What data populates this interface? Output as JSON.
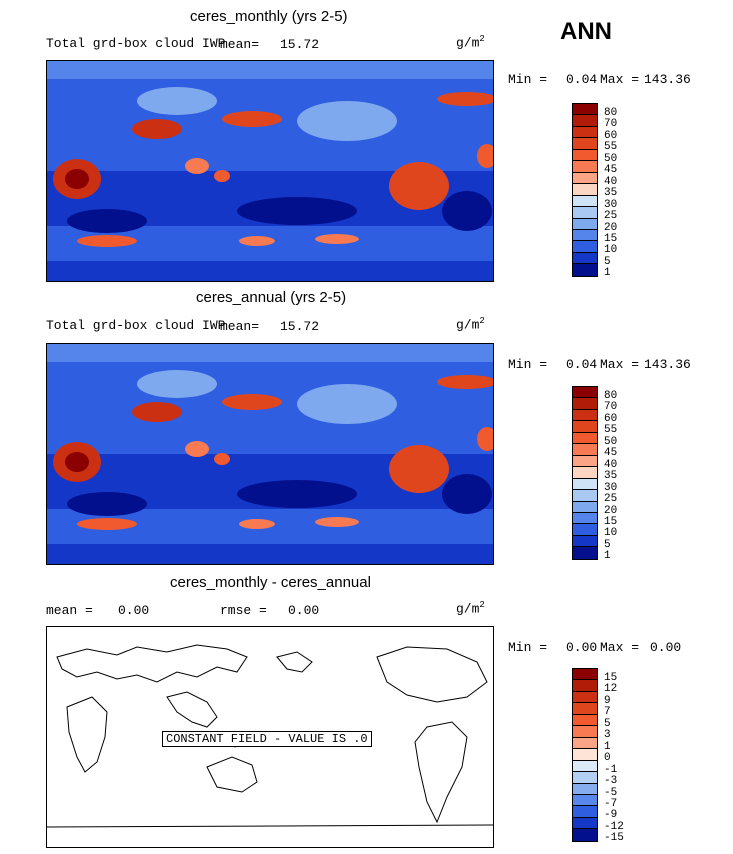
{
  "season": "ANN",
  "panels": [
    {
      "title": "ceres_monthly (yrs 2-5)",
      "variable": "Total grd-box cloud IWP",
      "mean_label": "mean=",
      "mean_value": "15.72",
      "units_base": "g/m",
      "units_exp": "2",
      "min_label": "Min =",
      "min_value": "0.04",
      "max_label": "Max =",
      "max_value": "143.36",
      "levels": [
        "80",
        "70",
        "60",
        "55",
        "50",
        "45",
        "40",
        "35",
        "30",
        "25",
        "20",
        "15",
        "10",
        "5",
        "1"
      ]
    },
    {
      "title": "ceres_annual (yrs 2-5)",
      "variable": "Total grd-box cloud IWP",
      "mean_label": "mean=",
      "mean_value": "15.72",
      "units_base": "g/m",
      "units_exp": "2",
      "min_label": "Min =",
      "min_value": "0.04",
      "max_label": "Max =",
      "max_value": "143.36",
      "levels": [
        "80",
        "70",
        "60",
        "55",
        "50",
        "45",
        "40",
        "35",
        "30",
        "25",
        "20",
        "15",
        "10",
        "5",
        "1"
      ]
    },
    {
      "title": "ceres_monthly - ceres_annual",
      "mean_label": "mean =",
      "mean_value": "0.00",
      "rmse_label": "rmse =",
      "rmse_value": "0.00",
      "units_base": "g/m",
      "units_exp": "2",
      "min_label": "Min =",
      "min_value": "0.00",
      "max_label": "Max =",
      "max_value": "0.00",
      "levels": [
        "15",
        "12",
        "9",
        "7",
        "5",
        "3",
        "1",
        "0",
        "-1",
        "-3",
        "-5",
        "-7",
        "-9",
        "-12",
        "-15"
      ],
      "constant_note": "CONSTANT FIELD - VALUE IS .0"
    }
  ],
  "colors": {
    "abs_scale": [
      "#8b0000",
      "#b01c08",
      "#cc3012",
      "#e0461e",
      "#f05a2e",
      "#f77a52",
      "#fba486",
      "#fcd6c2",
      "#cfe3f7",
      "#a9c9f2",
      "#7fa9ee",
      "#5585ea",
      "#2f5fe0",
      "#1537c8",
      "#02108e"
    ],
    "diff_scale": [
      "#8b0000",
      "#b01c08",
      "#cc3012",
      "#e0461e",
      "#f05a2e",
      "#f77a52",
      "#fba486",
      "#fde4d6",
      "#dbe9f8",
      "#b3cff2",
      "#86adee",
      "#5a87ea",
      "#2f5fe0",
      "#1537c8",
      "#02108e"
    ]
  }
}
